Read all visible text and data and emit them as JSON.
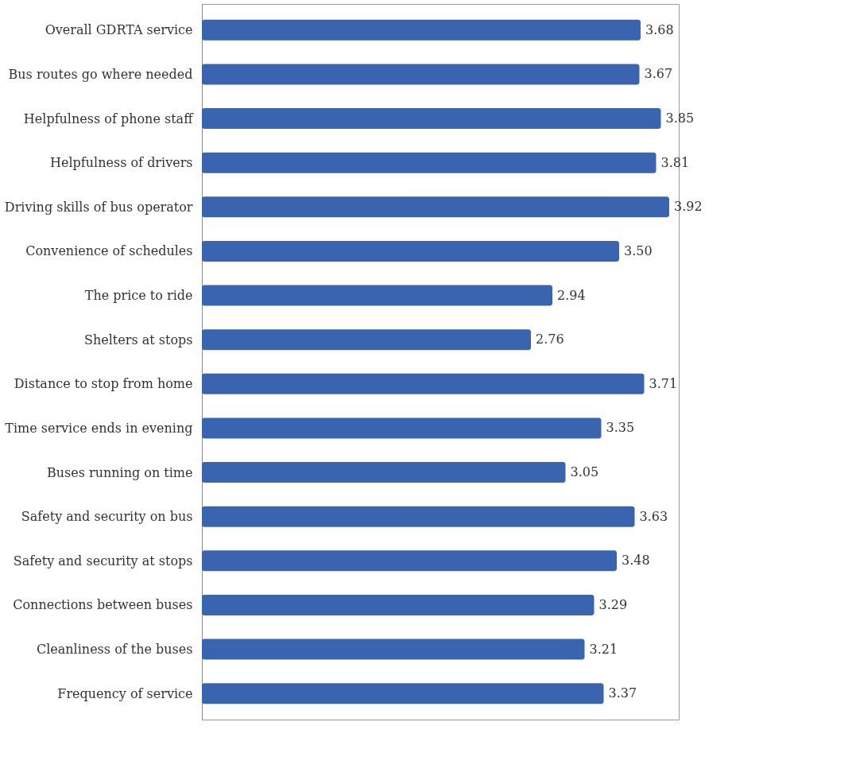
{
  "chart_data": {
    "type": "bar",
    "orientation": "horizontal",
    "categories": [
      "Overall GDRTA service",
      "Bus routes go where needed",
      "Helpfulness of phone staff",
      "Helpfulness of drivers",
      "Driving skills of bus operator",
      "Convenience of schedules",
      "The price to ride",
      "Shelters at stops",
      "Distance to stop from home",
      "Time service ends in evening",
      "Buses running on time",
      "Safety and security on bus",
      "Safety and security at stops",
      "Connections between buses",
      "Cleanliness of the buses",
      "Frequency of service"
    ],
    "values": [
      3.68,
      3.67,
      3.85,
      3.81,
      3.92,
      3.5,
      2.94,
      2.76,
      3.71,
      3.35,
      3.05,
      3.63,
      3.48,
      3.29,
      3.21,
      3.37
    ],
    "value_labels": [
      "3.68",
      "3.67",
      "3.85",
      "3.81",
      "3.92",
      "3.50",
      "2.94",
      "2.76",
      "3.71",
      "3.35",
      "3.05",
      "3.63",
      "3.48",
      "3.29",
      "3.21",
      "3.37"
    ],
    "color": "#3a64b0",
    "xlim": [
      0,
      4.0
    ],
    "grid": false,
    "legend": false
  }
}
